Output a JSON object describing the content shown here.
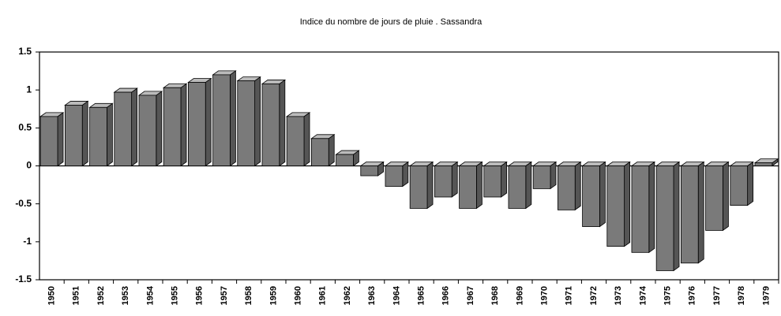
{
  "chart_data": {
    "type": "bar3d",
    "title": "Indice du nombre de jours de pluie . Sassandra",
    "categories": [
      "1950",
      "1951",
      "1952",
      "1953",
      "1954",
      "1955",
      "1956",
      "1957",
      "1958",
      "1959",
      "1960",
      "1961",
      "1962",
      "1963",
      "1964",
      "1965",
      "1966",
      "1967",
      "1968",
      "1969",
      "1970",
      "1971",
      "1972",
      "1973",
      "1974",
      "1975",
      "1976",
      "1977",
      "1978",
      "1979"
    ],
    "values": [
      0.65,
      0.8,
      0.77,
      0.97,
      0.93,
      1.03,
      1.1,
      1.2,
      1.12,
      1.08,
      0.65,
      0.36,
      0.15,
      -0.13,
      -0.27,
      -0.56,
      -0.41,
      -0.56,
      -0.41,
      -0.56,
      -0.3,
      -0.58,
      -0.8,
      -1.06,
      -1.14,
      -1.38,
      -1.28,
      -0.85,
      -0.52,
      0.04
    ],
    "color": "#7a7a7a",
    "ylim": [
      -1.5,
      1.5
    ],
    "yticks": [
      -1.5,
      -1,
      -0.5,
      0,
      0.5,
      1,
      1.5
    ]
  }
}
